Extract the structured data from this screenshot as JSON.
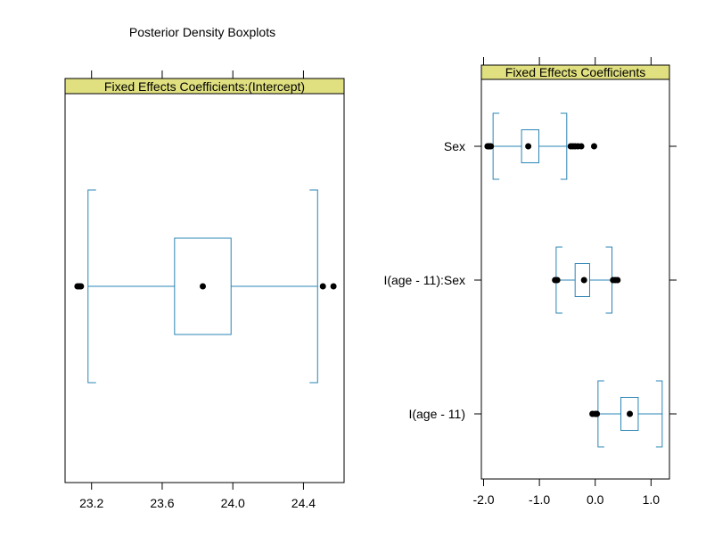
{
  "title": "Posterior Density Boxplots",
  "colors": {
    "box": "#2a84b4",
    "strip": "#e0e080",
    "points": "#000000",
    "frame": "#000000"
  },
  "chart_data": [
    {
      "type": "boxplot",
      "strip_label": "Fixed Effects Coefficients:(Intercept)",
      "xlim": [
        23.05,
        24.63
      ],
      "ticks": [
        23.2,
        23.6,
        24.0,
        24.4
      ],
      "tick_labels": [
        "23.2",
        "23.6",
        "24.0",
        "24.4"
      ],
      "boxes": [
        {
          "label": "",
          "whisker_low": 23.18,
          "q1": 23.67,
          "median": 23.83,
          "q3": 23.99,
          "whisker_high": 24.48,
          "outliers": [
            23.12,
            23.13,
            23.14,
            24.51,
            24.57
          ]
        }
      ]
    },
    {
      "type": "boxplot",
      "strip_label": "Fixed Effects Coefficients",
      "xlim": [
        -2.04,
        1.33
      ],
      "ticks": [
        -2.0,
        -1.0,
        0.0,
        1.0
      ],
      "tick_labels": [
        "-2.0",
        "-1.0",
        "0.0",
        "1.0"
      ],
      "boxes": [
        {
          "label": "Sex",
          "whisker_low": -1.83,
          "q1": -1.32,
          "median": -1.2,
          "q3": -1.01,
          "whisker_high": -0.51,
          "outliers": [
            -1.93,
            -1.91,
            -1.89,
            -1.87,
            -0.44,
            -0.4,
            -0.36,
            -0.31,
            -0.25,
            -0.02
          ]
        },
        {
          "label": "I(age - 11):Sex",
          "whisker_low": -0.7,
          "q1": -0.36,
          "median": -0.2,
          "q3": -0.1,
          "whisker_high": 0.3,
          "outliers": [
            -0.72,
            -0.68,
            0.32,
            0.36,
            0.4
          ]
        },
        {
          "label": "I(age - 11)",
          "whisker_low": 0.05,
          "q1": 0.46,
          "median": 0.62,
          "q3": 0.77,
          "whisker_high": 1.2,
          "outliers": [
            -0.05,
            0.0,
            0.03
          ]
        }
      ]
    }
  ]
}
